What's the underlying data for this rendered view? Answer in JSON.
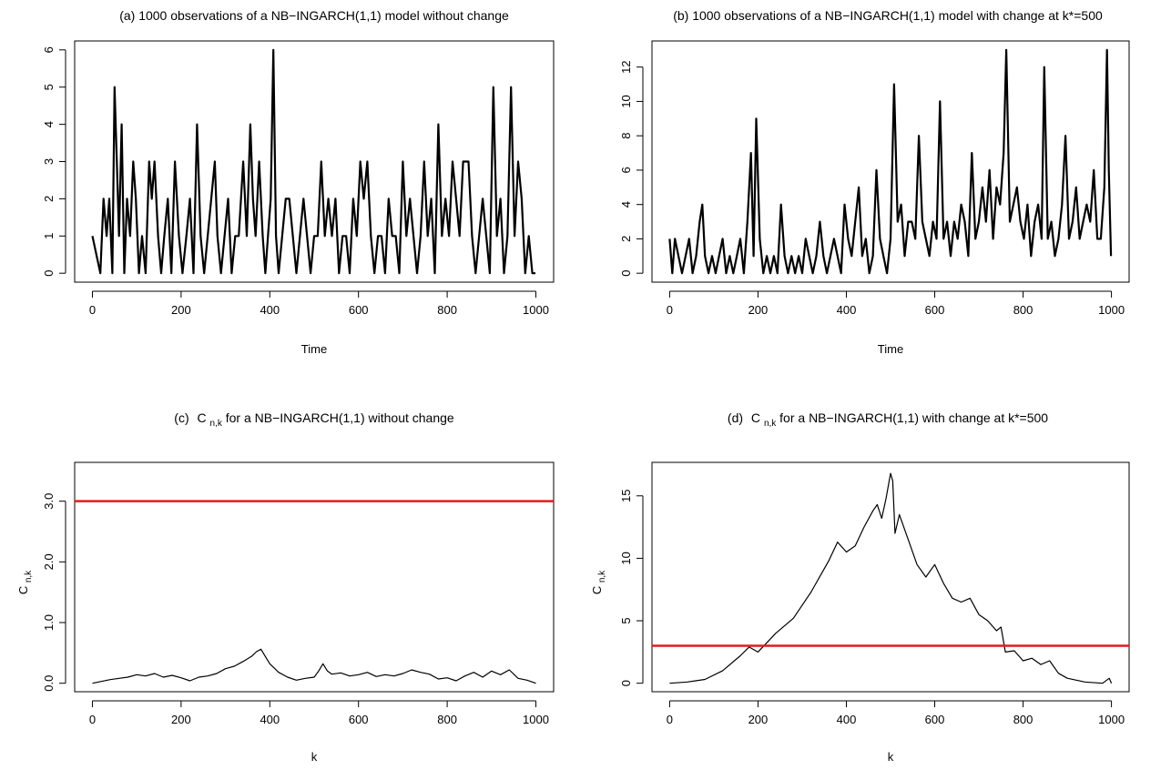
{
  "colors": {
    "series": "#000000",
    "threshold": "#e41a1c",
    "frame": "#000000"
  },
  "chart_data": [
    {
      "type": "line",
      "title": "(a)  1000 observations of a NB−INGARCH(1,1) model without change",
      "xlabel": "Time",
      "ylabel": "",
      "xlim": [
        0,
        1000
      ],
      "ylim": [
        0,
        6
      ],
      "x_ticks": [
        0,
        200,
        400,
        600,
        800,
        1000
      ],
      "x_tick_labels": [
        "0",
        "200",
        "400",
        "600",
        "800",
        "1000"
      ],
      "y_ticks": [
        0,
        1,
        2,
        3,
        4,
        5,
        6
      ],
      "y_tick_labels": [
        "0",
        "1",
        "2",
        "3",
        "4",
        "5",
        "6"
      ],
      "series": [
        {
          "x": [
            0,
            18,
            25,
            32,
            38,
            45,
            50,
            55,
            60,
            66,
            72,
            78,
            85,
            92,
            98,
            105,
            112,
            120,
            128,
            134,
            140,
            148,
            155,
            162,
            170,
            178,
            186,
            195,
            203,
            212,
            220,
            228,
            236,
            244,
            252,
            260,
            268,
            276,
            282,
            290,
            298,
            306,
            314,
            322,
            330,
            340,
            348,
            356,
            362,
            368,
            376,
            384,
            390,
            396,
            402,
            408,
            414,
            420,
            428,
            436,
            444,
            452,
            460,
            468,
            476,
            484,
            492,
            500,
            508,
            516,
            524,
            532,
            540,
            548,
            556,
            564,
            572,
            580,
            588,
            596,
            604,
            612,
            620,
            628,
            636,
            644,
            652,
            660,
            668,
            676,
            684,
            692,
            700,
            708,
            716,
            724,
            732,
            740,
            748,
            756,
            764,
            772,
            780,
            788,
            796,
            804,
            812,
            820,
            828,
            836,
            842,
            848,
            856,
            864,
            872,
            880,
            888,
            896,
            904,
            912,
            920,
            928,
            936,
            944,
            952,
            960,
            968,
            976,
            984,
            992,
            999
          ],
          "y": [
            1,
            0,
            2,
            1,
            2,
            0,
            5,
            3,
            1,
            4,
            0,
            2,
            1,
            3,
            2,
            0,
            1,
            0,
            3,
            2,
            3,
            1,
            0,
            1,
            2,
            0,
            3,
            1,
            0,
            1,
            2,
            0,
            4,
            1,
            0,
            1,
            2,
            3,
            1,
            0,
            1,
            2,
            0,
            1,
            1,
            3,
            1,
            4,
            2,
            1,
            3,
            1,
            0,
            1,
            2,
            6,
            1,
            0,
            1,
            2,
            2,
            1,
            0,
            1,
            2,
            1,
            0,
            1,
            1,
            3,
            1,
            2,
            1,
            2,
            0,
            1,
            1,
            0,
            2,
            1,
            3,
            2,
            3,
            1,
            0,
            1,
            1,
            0,
            2,
            1,
            1,
            0,
            3,
            1,
            2,
            1,
            0,
            1,
            3,
            1,
            2,
            0,
            4,
            1,
            2,
            1,
            3,
            2,
            1,
            3,
            3,
            3,
            1,
            0,
            1,
            2,
            1,
            0,
            5,
            1,
            2,
            0,
            1,
            5,
            1,
            3,
            2,
            0,
            1,
            0,
            0
          ]
        }
      ]
    },
    {
      "type": "line",
      "title": "(b)     1000 observations of a  NB−INGARCH(1,1) model with change at k*=500",
      "xlabel": "Time",
      "ylabel": "",
      "xlim": [
        0,
        1000
      ],
      "ylim": [
        0,
        13
      ],
      "x_ticks": [
        0,
        200,
        400,
        600,
        800,
        1000
      ],
      "x_tick_labels": [
        "0",
        "200",
        "400",
        "600",
        "800",
        "1000"
      ],
      "y_ticks": [
        0,
        2,
        4,
        6,
        8,
        10,
        12
      ],
      "y_tick_labels": [
        "0",
        "2",
        "4",
        "6",
        "8",
        "10",
        "12"
      ],
      "series": [
        {
          "x": [
            0,
            6,
            12,
            20,
            28,
            36,
            44,
            52,
            60,
            68,
            74,
            80,
            88,
            96,
            104,
            112,
            120,
            128,
            136,
            144,
            152,
            160,
            168,
            176,
            184,
            190,
            196,
            204,
            212,
            220,
            228,
            236,
            244,
            252,
            260,
            268,
            276,
            284,
            292,
            300,
            308,
            316,
            324,
            332,
            340,
            348,
            356,
            364,
            372,
            380,
            388,
            396,
            404,
            412,
            420,
            428,
            436,
            444,
            452,
            460,
            468,
            476,
            484,
            492,
            500,
            508,
            516,
            524,
            532,
            540,
            548,
            556,
            564,
            572,
            580,
            588,
            596,
            604,
            612,
            620,
            628,
            636,
            644,
            652,
            660,
            668,
            676,
            684,
            692,
            700,
            708,
            716,
            724,
            732,
            740,
            748,
            756,
            762,
            770,
            778,
            786,
            794,
            802,
            810,
            818,
            826,
            834,
            842,
            848,
            856,
            864,
            872,
            880,
            888,
            896,
            904,
            912,
            920,
            928,
            936,
            944,
            952,
            960,
            968,
            976,
            984,
            990,
            994,
            999
          ],
          "y": [
            2,
            0,
            2,
            1,
            0,
            1,
            2,
            0,
            1,
            3,
            4,
            1,
            0,
            1,
            0,
            1,
            2,
            0,
            1,
            0,
            1,
            2,
            0,
            3,
            7,
            1,
            9,
            2,
            0,
            1,
            0,
            1,
            0,
            4,
            1,
            0,
            1,
            0,
            1,
            0,
            2,
            1,
            0,
            1,
            3,
            1,
            0,
            1,
            2,
            1,
            0,
            4,
            2,
            1,
            3,
            5,
            1,
            2,
            0,
            1,
            6,
            2,
            1,
            0,
            2,
            11,
            3,
            4,
            1,
            3,
            3,
            2,
            8,
            3,
            2,
            1,
            3,
            2,
            10,
            2,
            3,
            1,
            3,
            2,
            4,
            3,
            1,
            7,
            2,
            3,
            5,
            3,
            6,
            2,
            5,
            4,
            7,
            13,
            3,
            4,
            5,
            3,
            2,
            4,
            1,
            3,
            4,
            2,
            12,
            2,
            3,
            1,
            2,
            4,
            8,
            2,
            3,
            5,
            2,
            3,
            4,
            3,
            6,
            2,
            2,
            5,
            13,
            6,
            1
          ]
        }
      ]
    },
    {
      "type": "line",
      "title_prefix": "(c)",
      "title_suffix": " for a NB−INGARCH(1,1) without change",
      "stat_symbol": "C",
      "stat_subscript": "n,k",
      "xlabel": "k",
      "ylabel_symbol": "C",
      "ylabel_subscript": "n,k",
      "xlim": [
        0,
        1000
      ],
      "ylim": [
        0,
        3.5
      ],
      "x_ticks": [
        0,
        200,
        400,
        600,
        800,
        1000
      ],
      "x_tick_labels": [
        "0",
        "200",
        "400",
        "600",
        "800",
        "1000"
      ],
      "y_ticks": [
        0,
        1,
        2,
        3
      ],
      "y_tick_labels": [
        "0.0",
        "1.0",
        "2.0",
        "3.0"
      ],
      "threshold": 3,
      "series": [
        {
          "x": [
            0,
            20,
            40,
            60,
            80,
            100,
            120,
            140,
            160,
            180,
            200,
            220,
            240,
            260,
            280,
            300,
            320,
            340,
            360,
            370,
            380,
            390,
            400,
            420,
            440,
            460,
            480,
            500,
            510,
            520,
            530,
            540,
            560,
            580,
            600,
            620,
            640,
            660,
            680,
            700,
            720,
            740,
            760,
            780,
            800,
            820,
            840,
            860,
            880,
            900,
            920,
            940,
            960,
            980,
            1000
          ],
          "y": [
            0.0,
            0.03,
            0.06,
            0.08,
            0.1,
            0.14,
            0.12,
            0.16,
            0.1,
            0.13,
            0.09,
            0.04,
            0.1,
            0.12,
            0.16,
            0.24,
            0.28,
            0.36,
            0.45,
            0.52,
            0.56,
            0.44,
            0.32,
            0.18,
            0.1,
            0.05,
            0.08,
            0.1,
            0.2,
            0.32,
            0.2,
            0.15,
            0.17,
            0.12,
            0.14,
            0.18,
            0.11,
            0.14,
            0.12,
            0.16,
            0.22,
            0.18,
            0.15,
            0.07,
            0.09,
            0.04,
            0.12,
            0.18,
            0.1,
            0.2,
            0.14,
            0.22,
            0.08,
            0.05,
            0.0
          ]
        }
      ]
    },
    {
      "type": "line",
      "title_prefix": "(d)",
      "title_suffix": " for a NB−INGARCH(1,1) with change at k*=500",
      "stat_symbol": "C",
      "stat_subscript": "n,k",
      "xlabel": "k",
      "ylabel_symbol": "C",
      "ylabel_subscript": "n,k",
      "xlim": [
        0,
        1000
      ],
      "ylim": [
        0,
        17
      ],
      "x_ticks": [
        0,
        200,
        400,
        600,
        800,
        1000
      ],
      "x_tick_labels": [
        "0",
        "200",
        "400",
        "600",
        "800",
        "1000"
      ],
      "y_ticks": [
        0,
        5,
        10,
        15
      ],
      "y_tick_labels": [
        "0",
        "5",
        "10",
        "15"
      ],
      "threshold": 3,
      "series": [
        {
          "x": [
            0,
            40,
            80,
            120,
            160,
            180,
            200,
            240,
            280,
            320,
            360,
            380,
            400,
            420,
            440,
            460,
            470,
            480,
            490,
            500,
            505,
            510,
            520,
            540,
            560,
            580,
            600,
            620,
            640,
            660,
            680,
            700,
            720,
            740,
            750,
            760,
            780,
            800,
            820,
            840,
            860,
            880,
            900,
            940,
            980,
            995,
            1000
          ],
          "y": [
            0.0,
            0.1,
            0.3,
            1.0,
            2.2,
            2.9,
            2.5,
            4.0,
            5.2,
            7.3,
            9.8,
            11.3,
            10.5,
            11.0,
            12.5,
            13.8,
            14.3,
            13.2,
            14.8,
            16.8,
            16.2,
            12.0,
            13.5,
            11.5,
            9.5,
            8.5,
            9.5,
            8.0,
            6.8,
            6.5,
            6.8,
            5.5,
            5.0,
            4.2,
            4.5,
            2.5,
            2.6,
            1.8,
            2.0,
            1.5,
            1.8,
            0.8,
            0.4,
            0.1,
            0.0,
            0.4,
            0.0
          ]
        }
      ]
    }
  ]
}
